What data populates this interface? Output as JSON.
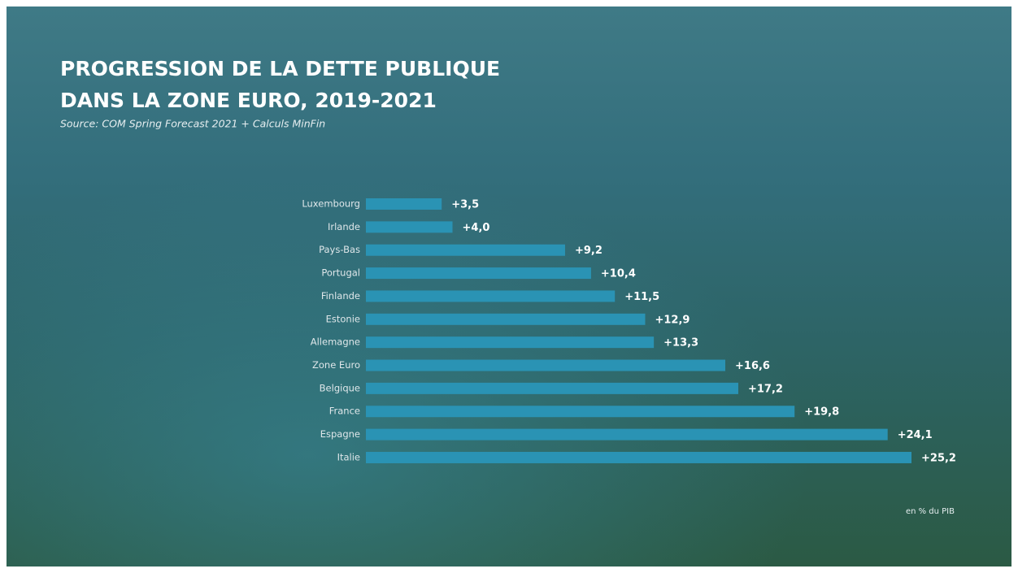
{
  "chart_data": {
    "type": "hbar",
    "title_lines": [
      "PROGRESSION DE LA DETTE PUBLIQUE",
      "DANS LA ZONE EURO, 2019-2021"
    ],
    "subtitle": "Source: COM Spring Forecast 2021 + Calculs MinFin",
    "annotation": "en % du PIB",
    "categories": [
      "Luxembourg",
      "Irlande",
      "Pays-Bas",
      "Portugal",
      "Finlande",
      "Estonie",
      "Allemagne",
      "Zone Euro",
      "Belgique",
      "France",
      "Espagne",
      "Italie"
    ],
    "values": [
      3.5,
      4.0,
      9.2,
      10.4,
      11.5,
      12.9,
      13.3,
      16.6,
      17.2,
      19.8,
      24.1,
      25.2
    ],
    "value_labels": [
      "+3,5",
      "+4,0",
      "+9,2",
      "+10,4",
      "+11,5",
      "+12,9",
      "+13,3",
      "+16,6",
      "+17,2",
      "+19,8",
      "+24,1",
      "+25,2"
    ],
    "color": "#2a93b4",
    "xlim": [
      0,
      25.2
    ]
  }
}
